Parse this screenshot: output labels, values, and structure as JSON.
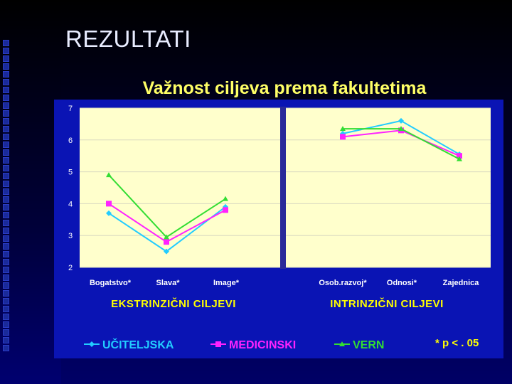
{
  "slide": {
    "title": "REZULTATI"
  },
  "colors": {
    "background": "#000050",
    "plot_area": "#ffffcc",
    "group_label": "#ffff00",
    "chart_title": "#ffff66",
    "divider": "#2a2a9a"
  },
  "chart_data": {
    "type": "line",
    "title": "Važnost ciljeva prema  fakultetima",
    "ylim": [
      2,
      7
    ],
    "y_ticks": [
      "2",
      "3",
      "4",
      "5",
      "6",
      "7"
    ],
    "grid": true,
    "legend_position": "bottom",
    "groups": [
      {
        "label": "EKSTRINZIČNI CILJEVI",
        "categories": [
          "Bogatstvo*",
          "Slava*",
          "Image*"
        ]
      },
      {
        "label": "INTRINZIČNI CILJEVI",
        "categories": [
          "Osob.razvoj*",
          "Odnosi*",
          "Zajednica"
        ]
      }
    ],
    "series": [
      {
        "name": "UČITELJSKA",
        "color": "#22ccff",
        "marker": "diamond",
        "values": [
          [
            3.7,
            2.5,
            3.9
          ],
          [
            6.2,
            6.6,
            5.55
          ]
        ]
      },
      {
        "name": "MEDICINSKI",
        "color": "#ff22ff",
        "marker": "square",
        "values": [
          [
            4.0,
            2.8,
            3.8
          ],
          [
            6.1,
            6.3,
            5.5
          ]
        ]
      },
      {
        "name": "VERN",
        "color": "#33dd33",
        "marker": "triangle",
        "values": [
          [
            4.9,
            2.95,
            4.15
          ],
          [
            6.35,
            6.35,
            5.4
          ]
        ]
      }
    ],
    "annotation": "* p < . 05"
  }
}
